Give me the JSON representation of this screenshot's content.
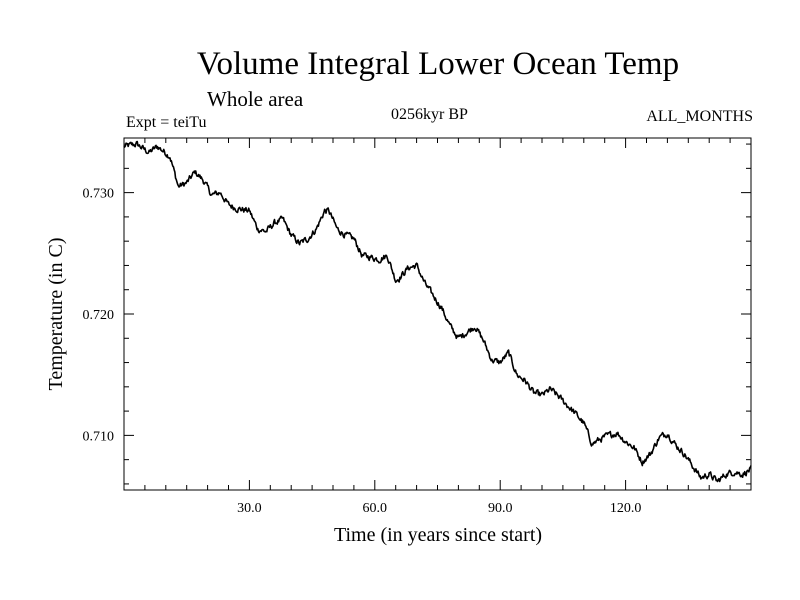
{
  "chart_data": {
    "type": "line",
    "title": "Volume Integral Lower Ocean Temp",
    "subtitle": "Whole area",
    "annotations": {
      "experiment": "Expt = teiTu",
      "period": "0256kyr BP",
      "months": "ALL_MONTHS"
    },
    "xlabel": "Time (in years since start)",
    "ylabel": "Temperature (in C)",
    "xlim": [
      0,
      150
    ],
    "ylim": [
      0.7055,
      0.7345
    ],
    "x_ticks": [
      "30.0",
      "60.0",
      "90.0",
      "120.0"
    ],
    "y_ticks": [
      "0.710",
      "0.720",
      "0.730"
    ],
    "grid": false,
    "series": [
      {
        "name": "teiTu",
        "x": [
          0,
          3,
          6,
          8,
          11,
          13,
          15,
          17,
          19,
          21,
          23,
          25,
          27,
          30,
          32,
          34,
          36,
          38,
          40,
          42,
          44,
          46,
          48,
          49,
          51,
          53,
          55,
          57,
          59,
          61,
          63,
          65,
          66,
          68,
          70,
          72,
          74,
          76,
          78,
          80,
          82,
          84,
          86,
          88,
          90,
          92,
          94,
          96,
          98,
          100,
          102,
          104,
          106,
          108,
          110,
          112,
          114,
          116,
          118,
          120,
          122,
          124,
          126,
          128,
          130,
          132,
          134,
          136,
          138,
          140,
          142,
          144,
          146,
          148,
          150
        ],
        "y": [
          0.7338,
          0.734,
          0.7333,
          0.7338,
          0.733,
          0.7305,
          0.7308,
          0.7317,
          0.731,
          0.7298,
          0.73,
          0.729,
          0.7287,
          0.7285,
          0.727,
          0.7268,
          0.7275,
          0.7278,
          0.7265,
          0.7258,
          0.7262,
          0.727,
          0.7285,
          0.7285,
          0.727,
          0.7265,
          0.7262,
          0.7248,
          0.7247,
          0.7245,
          0.7248,
          0.7228,
          0.723,
          0.7238,
          0.724,
          0.7225,
          0.7215,
          0.7205,
          0.719,
          0.718,
          0.7185,
          0.719,
          0.7178,
          0.7162,
          0.716,
          0.7168,
          0.715,
          0.7145,
          0.7135,
          0.7133,
          0.7138,
          0.7132,
          0.7125,
          0.7118,
          0.711,
          0.7093,
          0.7097,
          0.71,
          0.7102,
          0.7095,
          0.709,
          0.7078,
          0.7085,
          0.7098,
          0.7102,
          0.7092,
          0.7085,
          0.7075,
          0.7065,
          0.7068,
          0.7062,
          0.7068,
          0.707,
          0.7068,
          0.7072
        ]
      }
    ]
  }
}
